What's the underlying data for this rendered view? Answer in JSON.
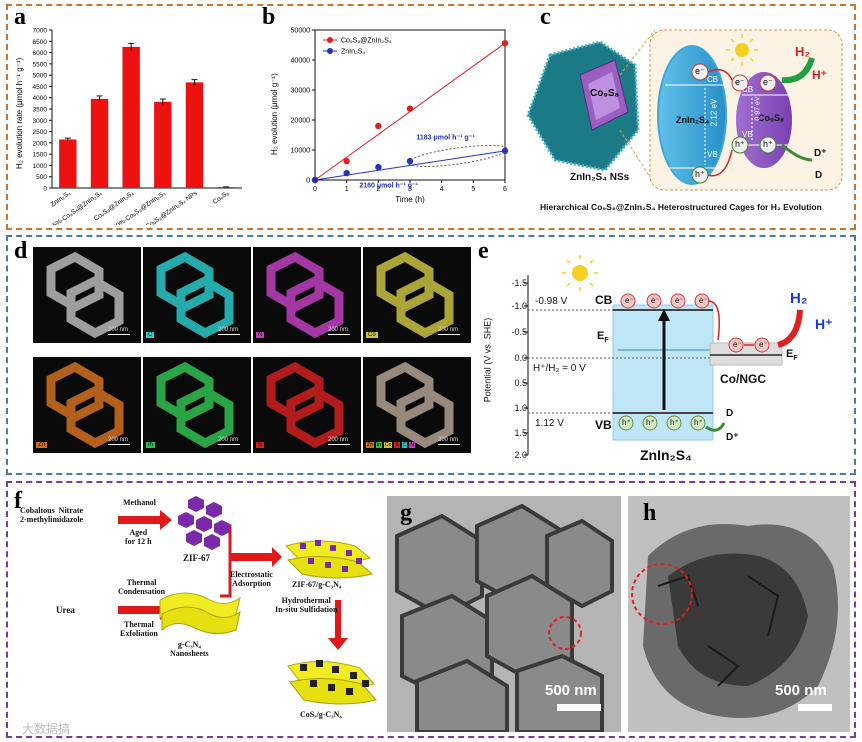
{
  "colors": {
    "top_border": "#c8742c",
    "mid_border": "#4a7aa8",
    "bot_border": "#7a3a9a",
    "bar_red": "#ee1111",
    "line_red": "#dd2222",
    "line_blue": "#2233bb"
  },
  "panel_labels": [
    "a",
    "b",
    "c",
    "d",
    "e",
    "f",
    "g",
    "h"
  ],
  "chart_data": [
    {
      "type": "bar",
      "ylabel": "H₂ evolution rate (μmol h⁻¹ g⁻¹)",
      "categories": [
        "ZnIn₂S₄",
        "15%-Co₉S₈@ZnIn₂S₄",
        "Co₉S₈@ZnIn₂S₄",
        "30%-Co₉S₈@ZnIn₂S₄",
        "Co₉S₈@ZnIn₂S₄ NPs",
        "Co₉S₈"
      ],
      "values": [
        2150,
        3950,
        6250,
        3820,
        4680,
        40
      ],
      "errors": [
        60,
        130,
        160,
        120,
        120,
        10
      ],
      "ylim": [
        0,
        7000
      ],
      "yticks": [
        "0",
        "500",
        "1000",
        "1500",
        "2000",
        "2500",
        "3000",
        "3500",
        "4000",
        "4500",
        "5000",
        "5500",
        "6000",
        "6500",
        "7000"
      ]
    },
    {
      "type": "line",
      "xlabel": "Time (h)",
      "ylabel": "H₂ evolution (μmol g⁻¹)",
      "xlim": [
        0,
        6
      ],
      "ylim": [
        0,
        50000
      ],
      "xticks": [
        "0",
        "1",
        "2",
        "3",
        "4",
        "5",
        "6"
      ],
      "yticks": [
        "0",
        "10000",
        "20000",
        "30000",
        "40000",
        "50000"
      ],
      "series": [
        {
          "name": "Co₉S₈@ZnIn₂S₄",
          "x": [
            0,
            1,
            2,
            3,
            6
          ],
          "y": [
            0,
            6300,
            18000,
            23800,
            45600
          ]
        },
        {
          "name": "ZnIn₂S₄",
          "x": [
            0,
            1,
            2,
            3,
            6
          ],
          "y": [
            0,
            2300,
            4300,
            6300,
            9700
          ]
        }
      ],
      "annotations": [
        "1183 μmol h⁻¹ g⁻¹",
        "2160 μmol h⁻¹ g⁻¹"
      ]
    }
  ],
  "panel_c": {
    "label_cage": "Co₉S₈",
    "label_nss": "ZnIn₂S₄ NSs",
    "zis": "ZnIn₂S₄",
    "cos": "Co₉S₈",
    "cb": "CB",
    "vb": "VB",
    "gap1": "2.12 eV",
    "gap2": "0.97 eV",
    "e": "e⁻",
    "h": "h⁺",
    "h2": "H₂",
    "hplus": "H⁺",
    "dplus": "D⁺",
    "d": "D",
    "caption": "Hierarchical Co₉S₈@ZnIn₂S₄ Heterostructured Cages for H₂ Evolution"
  },
  "panel_d": {
    "scale": "200 nm",
    "tiles": [
      {
        "el": "",
        "color": "#b8b8b8"
      },
      {
        "el": "C",
        "color": "#2ac8c8"
      },
      {
        "el": "N",
        "color": "#c040c0"
      },
      {
        "el": "Co",
        "color": "#c8c040"
      },
      {
        "el": "Zn",
        "color": "#d07020"
      },
      {
        "el": "In",
        "color": "#30c050"
      },
      {
        "el": "S",
        "color": "#d02020"
      },
      {
        "el": "",
        "color": "#b0a090"
      }
    ],
    "merge_labels": [
      "Zn",
      "In",
      "Co",
      "S",
      "C",
      "N"
    ]
  },
  "panel_e": {
    "ylabel": "Potential (V vs. SHE)",
    "yticks": [
      "-1.5",
      "-1.0",
      "-0.5",
      "0.0",
      "0.5",
      "1.0",
      "1.5",
      "2.0"
    ],
    "cb_level": "-0.98 V",
    "vb_level": "1.12 V",
    "h_level": "H⁺/H₂ = 0 V",
    "cb": "CB",
    "vb": "VB",
    "ef": "E_F",
    "ef2": "E_F",
    "material": "ZnIn₂S₄",
    "cocat": "Co/NGC",
    "h2": "H₂",
    "hplus": "H⁺",
    "d": "D",
    "dplus": "D⁺",
    "e": "e⁻",
    "h": "h⁺"
  },
  "panel_f": {
    "precursor1": "Cobaltous  Nitrate\n2-methylimidazole",
    "step1_top": "Methanol",
    "step1_bot": "Aged\nfor 12 h",
    "zif": "ZIF-67",
    "urea": "Urea",
    "step2_top": "Thermal\nCondensation",
    "step2_bot": "Thermal\nExfoliation",
    "gcn": "g-C₃N₄\nNanosheets",
    "electro": "Electrostatic\nAdsorption",
    "zif_gcn": "ZIF-67/g-C₃N₄",
    "hydro": "Hydrothermal\nIn-situ Sulfidation",
    "product": "CoSₓ/g-C₃N₄"
  },
  "panel_g": {
    "scale": "500 nm"
  },
  "panel_h": {
    "scale": "500 nm"
  },
  "watermark": "大数据搞"
}
